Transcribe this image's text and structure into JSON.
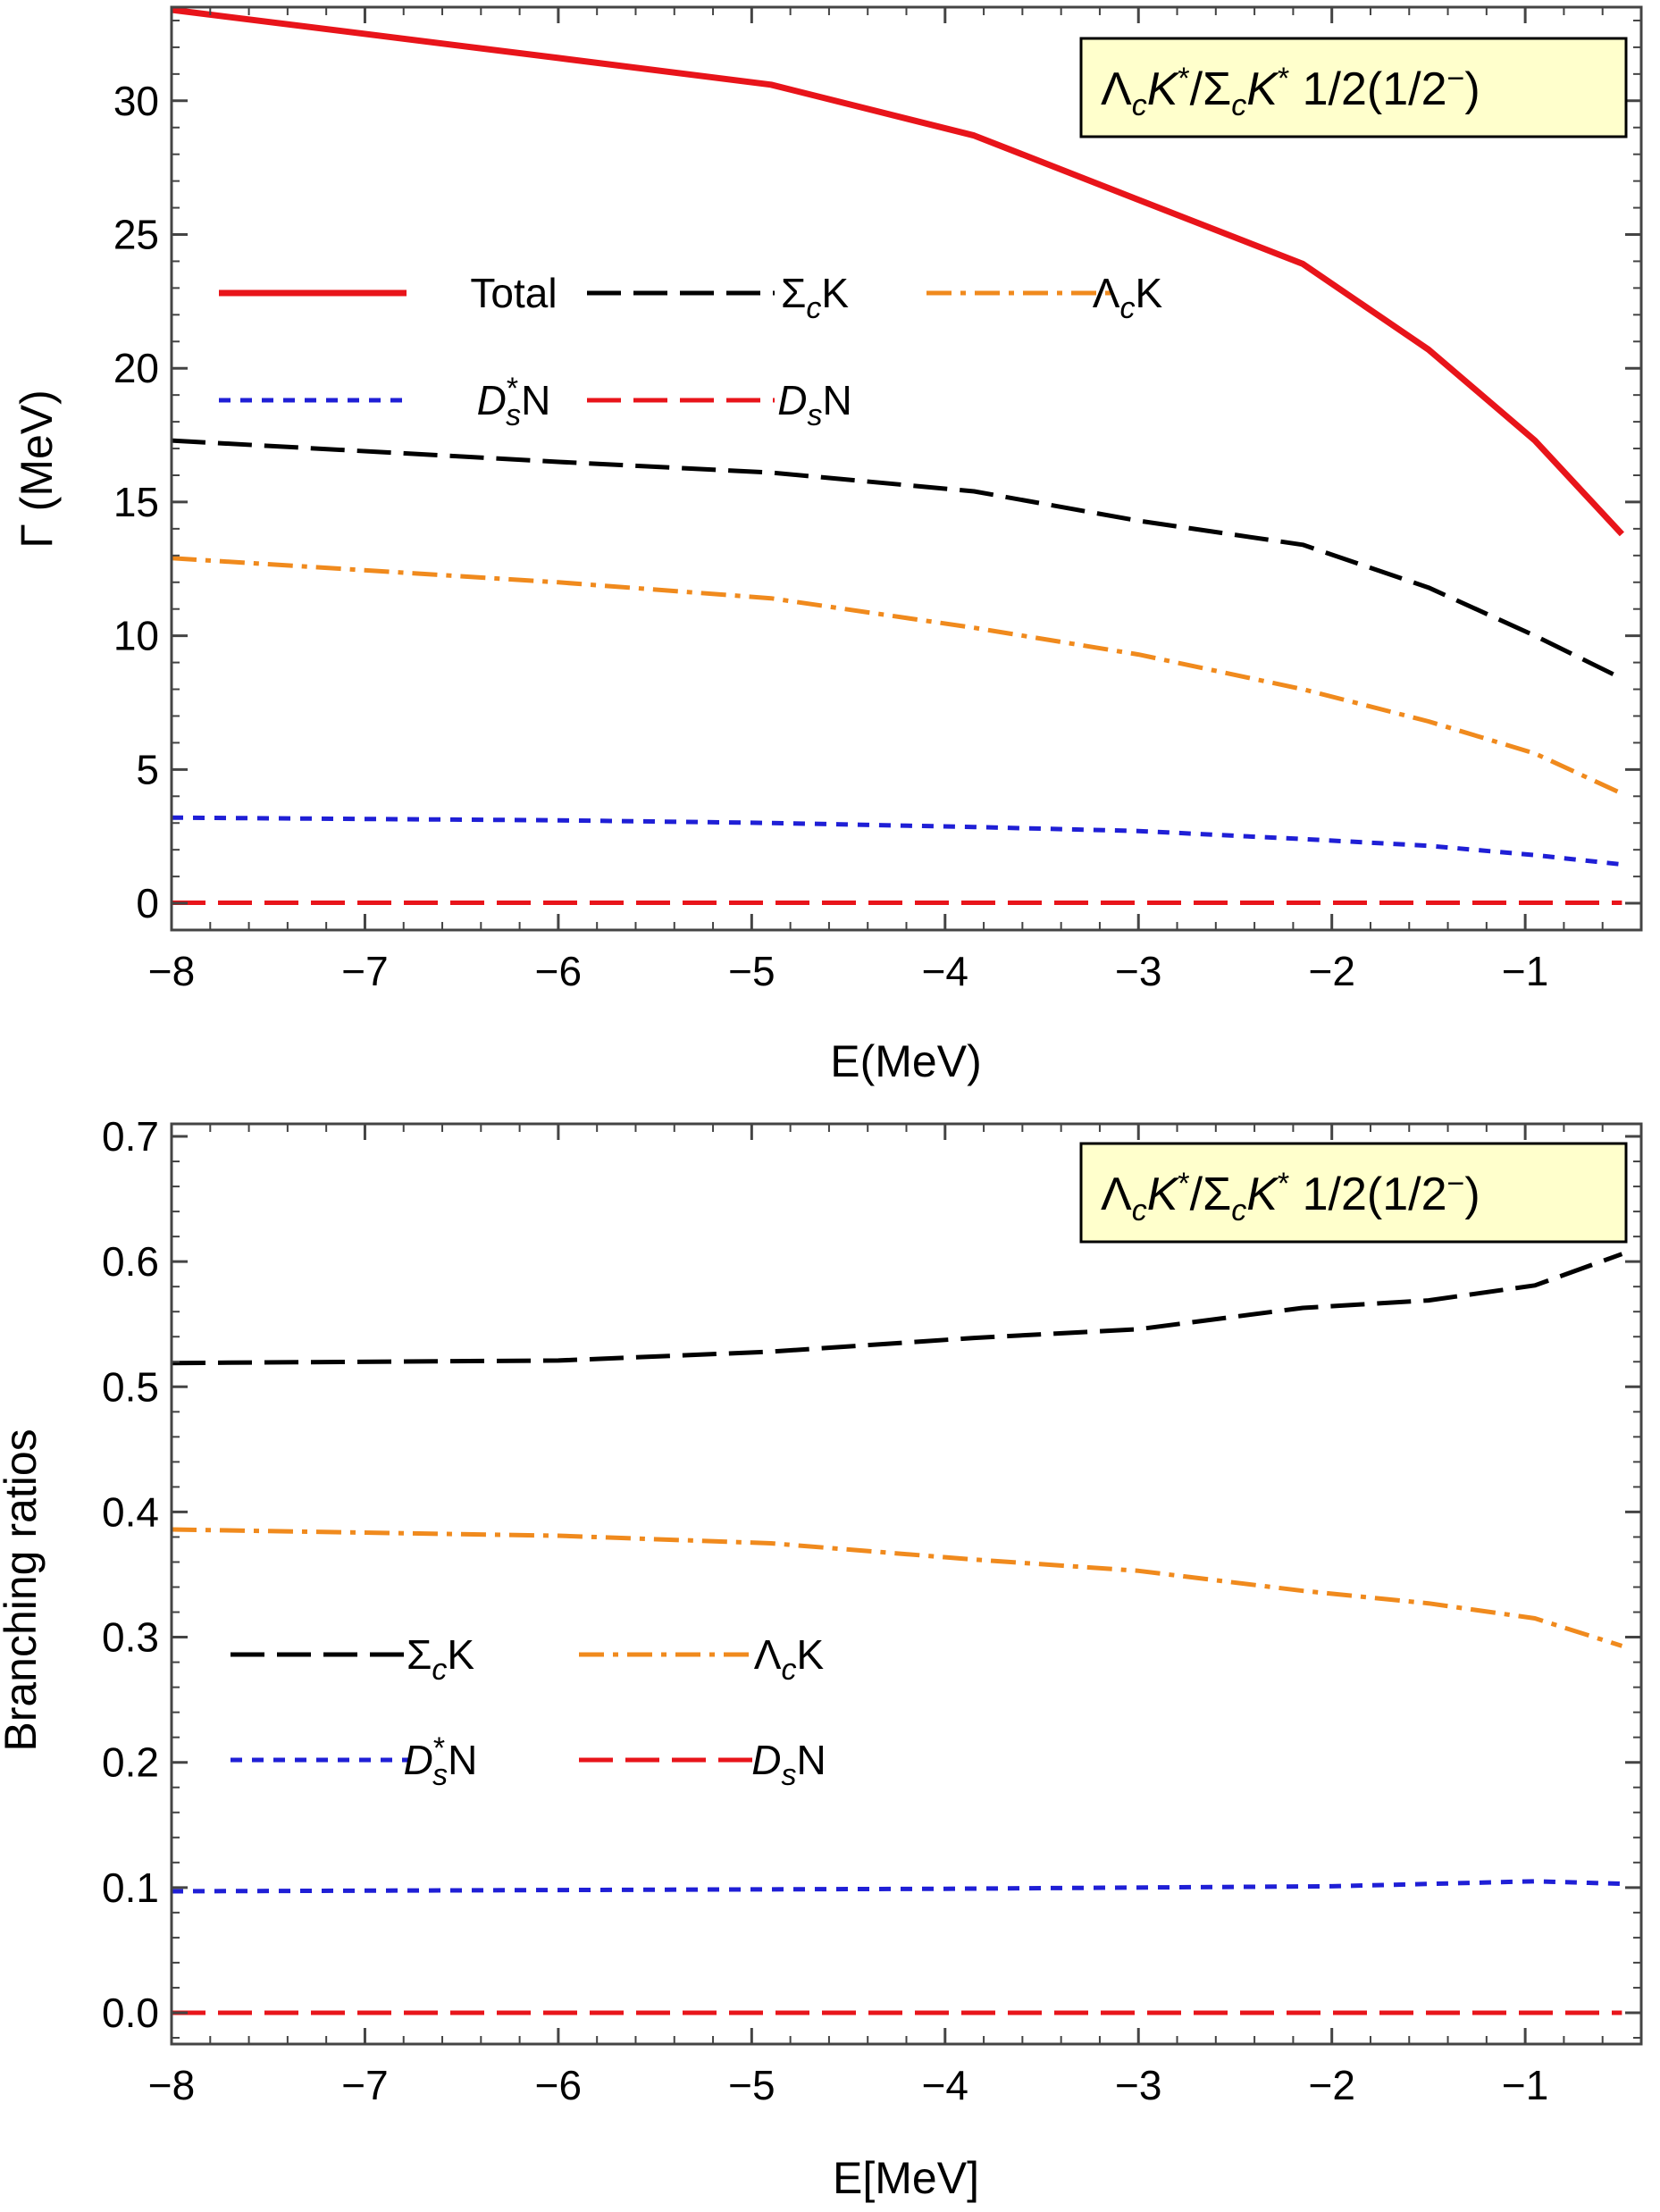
{
  "chart_data": [
    {
      "type": "line",
      "xlabel": "E(MeV)",
      "ylabel": "Γ (MeV)",
      "xlim": [
        -8,
        -0.4
      ],
      "ylim": [
        -1,
        33.5
      ],
      "xticks": [
        -8,
        -7,
        -6,
        -5,
        -4,
        -3,
        -2,
        -1
      ],
      "xtick_labels": [
        "−8",
        "−7",
        "−6",
        "−5",
        "−4",
        "−3",
        "−2",
        "−1"
      ],
      "yticks": [
        0,
        5,
        10,
        15,
        20,
        25,
        30
      ],
      "ytick_labels": [
        "0",
        "5",
        "10",
        "15",
        "20",
        "25",
        "30"
      ],
      "grid": false,
      "annotation": {
        "part1": "Λ",
        "sub1": "c",
        "part2": "K",
        "sup2": "*",
        "part3": "/Σ",
        "sub3": "c",
        "part4": "K",
        "sup4": "*",
        "part5": " 1/2(1/2",
        "sup5": "−",
        "part6": ")"
      },
      "legend_position": "upper-left",
      "series": [
        {
          "name": "Total",
          "name_main": "Total",
          "name_sub": "",
          "name_sup": "",
          "color": "#e8141a",
          "style": "solid",
          "x": [
            -8,
            -6,
            -4.9,
            -3.85,
            -3,
            -2.15,
            -1.5,
            -0.95,
            -0.5
          ],
          "y": [
            33.4,
            31.6,
            30.6,
            28.7,
            26.3,
            23.9,
            20.7,
            17.3,
            13.8
          ]
        },
        {
          "name": "ΣcK",
          "name_main": "Σ",
          "name_sub": "c",
          "name_sup": "",
          "name_tail": "K",
          "color": "#000000",
          "style": "longdash",
          "x": [
            -8,
            -6,
            -4.9,
            -3.85,
            -3,
            -2.15,
            -1.5,
            -0.95,
            -0.5
          ],
          "y": [
            17.3,
            16.5,
            16.1,
            15.4,
            14.3,
            13.4,
            11.8,
            10.0,
            8.4
          ]
        },
        {
          "name": "ΛcK",
          "name_main": "Λ",
          "name_sub": "c",
          "name_sup": "",
          "name_tail": "K",
          "color": "#f08a1d",
          "style": "dashdot",
          "x": [
            -8,
            -6,
            -4.9,
            -3.85,
            -3,
            -2.15,
            -1.5,
            -0.95,
            -0.5
          ],
          "y": [
            12.9,
            12.0,
            11.4,
            10.3,
            9.3,
            8.0,
            6.8,
            5.6,
            4.1
          ]
        },
        {
          "name": "D*sN",
          "name_main": "D",
          "name_sub": "s",
          "name_sup": "*",
          "name_tail": "N",
          "color": "#1f1fd6",
          "style": "dotted",
          "x": [
            -8,
            -6,
            -4.9,
            -3.85,
            -3,
            -2.15,
            -1.5,
            -0.95,
            -0.5
          ],
          "y": [
            3.2,
            3.1,
            3.0,
            2.85,
            2.7,
            2.4,
            2.15,
            1.8,
            1.45
          ]
        },
        {
          "name": "DsN",
          "name_main": "D",
          "name_sub": "s",
          "name_sup": "",
          "name_tail": "N",
          "color": "#e8141a",
          "style": "dash",
          "x": [
            -8,
            -6,
            -4,
            -2,
            -0.5
          ],
          "y": [
            0.02,
            0.02,
            0.02,
            0.02,
            0.02
          ]
        }
      ]
    },
    {
      "type": "line",
      "xlabel": "E[MeV]",
      "ylabel": "Branching ratios",
      "xlim": [
        -8,
        -0.4
      ],
      "ylim": [
        -0.025,
        0.71
      ],
      "xticks": [
        -8,
        -7,
        -6,
        -5,
        -4,
        -3,
        -2,
        -1
      ],
      "xtick_labels": [
        "−8",
        "−7",
        "−6",
        "−5",
        "−4",
        "−3",
        "−2",
        "−1"
      ],
      "yticks": [
        0,
        0.1,
        0.2,
        0.3,
        0.4,
        0.5,
        0.6,
        0.7
      ],
      "ytick_labels": [
        "0.0",
        "0.1",
        "0.2",
        "0.3",
        "0.4",
        "0.5",
        "0.6",
        "0.7"
      ],
      "grid": false,
      "annotation": {
        "part1": "Λ",
        "sub1": "c",
        "part2": "K",
        "sup2": "*",
        "part3": "/Σ",
        "sub3": "c",
        "part4": "K",
        "sup4": "*",
        "part5": " 1/2(1/2",
        "sup5": "−",
        "part6": ")"
      },
      "legend_position": "middle-left",
      "series": [
        {
          "name": "ΣcK",
          "name_main": "Σ",
          "name_sub": "c",
          "name_sup": "",
          "name_tail": "K",
          "color": "#000000",
          "style": "longdash",
          "x": [
            -8,
            -6,
            -4.9,
            -3.85,
            -3,
            -2.15,
            -1.5,
            -0.95,
            -0.5
          ],
          "y": [
            0.519,
            0.521,
            0.528,
            0.539,
            0.546,
            0.563,
            0.569,
            0.581,
            0.606
          ]
        },
        {
          "name": "ΛcK",
          "name_main": "Λ",
          "name_sub": "c",
          "name_sup": "",
          "name_tail": "K",
          "color": "#f08a1d",
          "style": "dashdot",
          "x": [
            -8,
            -6,
            -4.9,
            -3.85,
            -3,
            -2.15,
            -1.5,
            -0.95,
            -0.5
          ],
          "y": [
            0.386,
            0.381,
            0.375,
            0.362,
            0.353,
            0.337,
            0.327,
            0.315,
            0.293
          ]
        },
        {
          "name": "D*sN",
          "name_main": "D",
          "name_sub": "s",
          "name_sup": "*",
          "name_tail": "N",
          "color": "#1f1fd6",
          "style": "dotted",
          "x": [
            -8,
            -6,
            -4,
            -2,
            -0.95,
            -0.5
          ],
          "y": [
            0.097,
            0.098,
            0.099,
            0.101,
            0.105,
            0.103
          ]
        },
        {
          "name": "DsN",
          "name_main": "D",
          "name_sub": "s",
          "name_sup": "",
          "name_tail": "N",
          "color": "#e8141a",
          "style": "dash",
          "x": [
            -8,
            -6,
            -4,
            -2,
            -0.5
          ],
          "y": [
            0.0,
            0.0,
            0.0,
            0.0,
            0.0
          ]
        }
      ]
    }
  ]
}
